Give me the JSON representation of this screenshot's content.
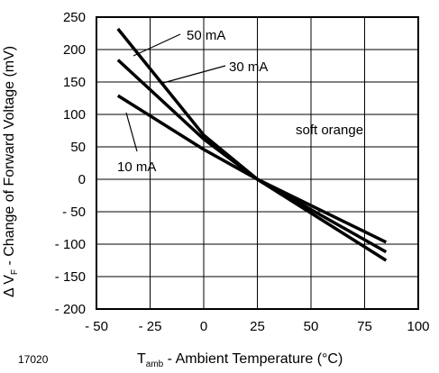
{
  "chart_data": {
    "type": "line",
    "figure_id": "17020",
    "xlabel": {
      "symbol": "T",
      "sub": "amb",
      "text": " - Ambient Temperature (°C)"
    },
    "ylabel": {
      "prefix": "Δ V",
      "sub": "F",
      "text": " - Change of Forward Voltage (mV)"
    },
    "xlim": [
      -50,
      100
    ],
    "ylim": [
      -200,
      250
    ],
    "xticks": [
      -50,
      -25,
      0,
      25,
      50,
      75,
      100
    ],
    "xtick_labels": [
      "- 50",
      "- 25",
      "0",
      "25",
      "50",
      "75",
      "100"
    ],
    "yticks": [
      -200,
      -150,
      -100,
      -50,
      0,
      50,
      100,
      150,
      200,
      250
    ],
    "ytick_labels": [
      "- 200",
      "- 150",
      "- 100",
      "- 50",
      "0",
      "50",
      "100",
      "150",
      "200",
      "250"
    ],
    "grid": true,
    "series": [
      {
        "name": "50 mA",
        "x": [
          -40,
          0,
          25,
          85
        ],
        "y": [
          232,
          68,
          0,
          -125
        ]
      },
      {
        "name": "30 mA",
        "x": [
          -40,
          0,
          25,
          85
        ],
        "y": [
          184,
          62,
          0,
          -112
        ]
      },
      {
        "name": "10 mA",
        "x": [
          -40,
          0,
          25,
          85
        ],
        "y": [
          129,
          46,
          0,
          -97
        ]
      }
    ],
    "annotations": [
      {
        "text": "50 mA",
        "series": "50 mA"
      },
      {
        "text": "30 mA",
        "series": "30 mA"
      },
      {
        "text": "10 mA",
        "series": "10 mA"
      },
      {
        "text": "soft orange"
      }
    ]
  }
}
